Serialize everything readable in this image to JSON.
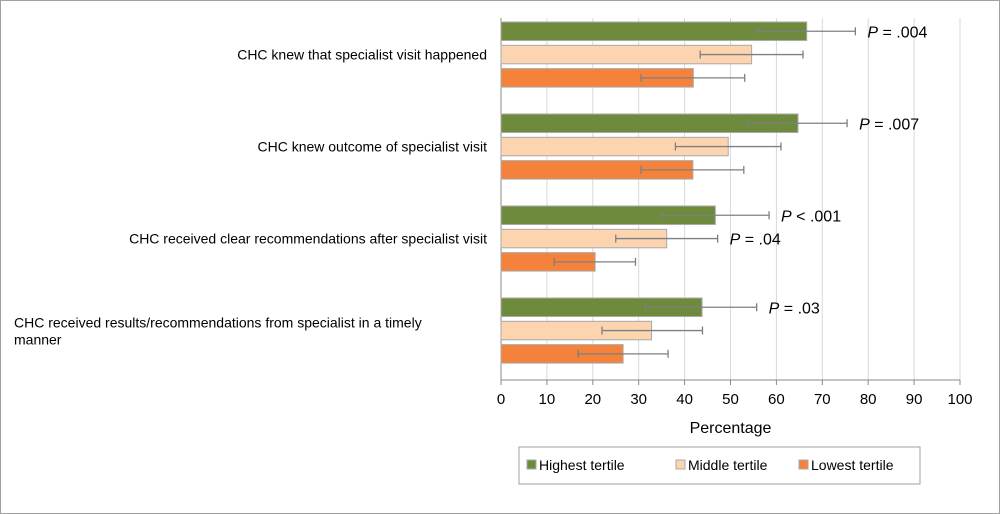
{
  "chart_data": {
    "type": "bar",
    "orientation": "horizontal",
    "categories": [
      "CHC knew that specialist visit happened",
      "CHC knew outcome of specialist visit",
      "CHC received clear recommendations after specialist visit",
      "CHC received results/recommendations from specialist in a timely manner"
    ],
    "series": [
      {
        "name": "Highest tertile",
        "color": "#6e8b3d",
        "values": [
          66.6,
          64.7,
          46.7,
          43.8
        ],
        "err_low": [
          55.8,
          53.8,
          35.1,
          31.6
        ],
        "err_high": [
          77.2,
          75.4,
          58.4,
          55.7
        ]
      },
      {
        "name": "Middle tertile",
        "color": "#fcd5b0",
        "values": [
          54.6,
          49.5,
          36.1,
          32.8
        ],
        "err_low": [
          43.4,
          38.0,
          25.0,
          22.0
        ],
        "err_high": [
          65.8,
          61.0,
          47.2,
          43.9
        ]
      },
      {
        "name": "Lowest tertile",
        "color": "#f5823a",
        "values": [
          41.9,
          41.8,
          20.5,
          26.6
        ],
        "err_low": [
          30.5,
          30.5,
          11.6,
          16.8
        ],
        "err_high": [
          53.1,
          52.9,
          29.3,
          36.4
        ]
      }
    ],
    "annotations": [
      {
        "category": 0,
        "series": 0,
        "text": "P = .004"
      },
      {
        "category": 1,
        "series": 0,
        "text": "P = .007"
      },
      {
        "category": 2,
        "series": 0,
        "text": "P < .001"
      },
      {
        "category": 2,
        "series": 1,
        "text": "P = .04"
      },
      {
        "category": 3,
        "series": 0,
        "text": "P = .03"
      }
    ],
    "xlabel": "Percentage",
    "ylabel": "",
    "title": "",
    "xlim": [
      0,
      100
    ],
    "xticks": [
      "0",
      "10",
      "20",
      "30",
      "40",
      "50",
      "60",
      "70",
      "80",
      "90",
      "100"
    ],
    "grid": "vertical",
    "legend": "bottom"
  }
}
